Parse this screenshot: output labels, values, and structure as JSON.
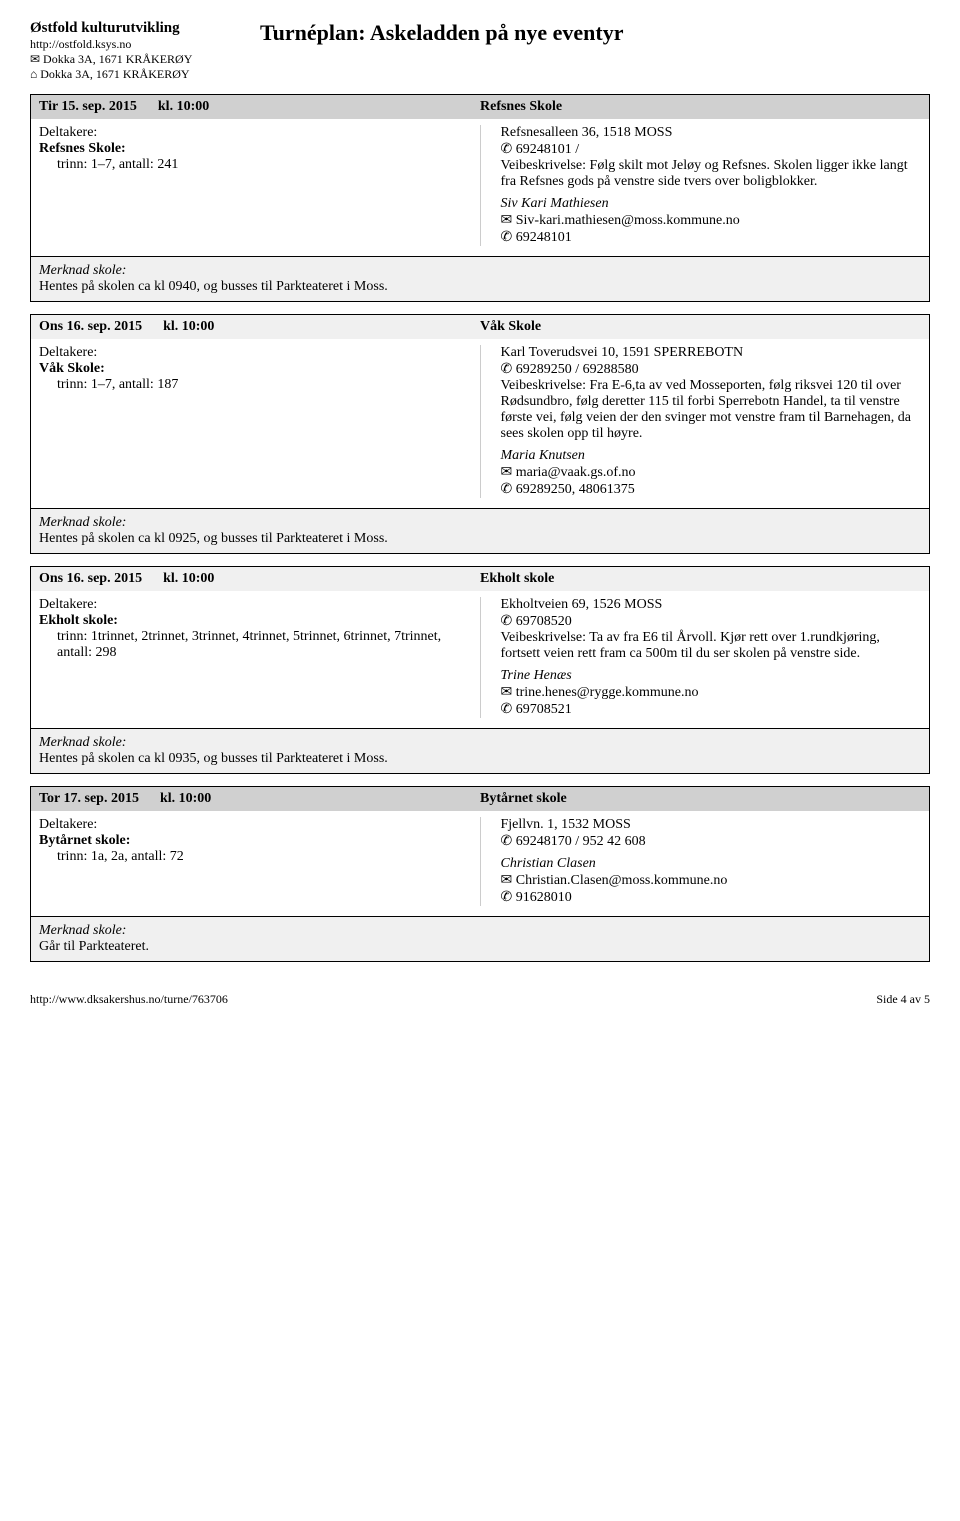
{
  "org": {
    "name": "Østfold kulturutvikling",
    "url": "http://ostfold.ksys.no",
    "addr1": "✉ Dokka 3A, 1671 KRÅKERØY",
    "addr2": "⌂ Dokka 3A, 1671 KRÅKERØY"
  },
  "title": "Turnéplan: Askeladden på nye eventyr",
  "events": [
    {
      "headerClass": "bg-dark",
      "date": "Tir 15. sep. 2015",
      "time": "kl. 10:00",
      "school": "Refsnes Skole",
      "participantsLabel": "Deltakere:",
      "schoolName": "Refsnes Skole:",
      "trinnLine": "trinn: 1–7, antall: 241",
      "address": "Refsnesalleen 36, 1518 MOSS",
      "phone": "✆ 69248101 /",
      "desc": "Veibeskrivelse: Følg skilt mot Jeløy og Refsnes. Skolen ligger ikke langt fra Refsnes gods på venstre side tvers over boligblokker.",
      "contactName": "Siv Kari Mathiesen",
      "contactEmail": "✉ Siv-kari.mathiesen@moss.kommune.no",
      "contactPhone": "✆ 69248101",
      "noteLabel": "Merknad skole:",
      "noteText": "Hentes på skolen ca kl 0940, og busses til Parkteateret i Moss."
    },
    {
      "headerClass": "bg-light",
      "date": "Ons 16. sep. 2015",
      "time": "kl. 10:00",
      "school": "Våk Skole",
      "participantsLabel": "Deltakere:",
      "schoolName": "Våk Skole:",
      "trinnLine": "trinn: 1–7, antall: 187",
      "address": "Karl Toverudsvei 10, 1591 SPERREBOTN",
      "phone": "✆ 69289250 / 69288580",
      "desc": "Veibeskrivelse: Fra E-6,ta av ved Mosseporten, følg riksvei 120 til over Rødsundbro, følg deretter 115 til forbi Sperrebotn Handel, ta til venstre første vei, følg veien der den svinger mot venstre fram til Barnehagen, da sees skolen opp til høyre.",
      "contactName": "Maria Knutsen",
      "contactEmail": "✉ maria@vaak.gs.of.no",
      "contactPhone": "✆ 69289250, 48061375",
      "noteLabel": "Merknad skole:",
      "noteText": "Hentes på skolen ca kl 0925, og busses til Parkteateret i Moss."
    },
    {
      "headerClass": "bg-light",
      "date": "Ons 16. sep. 2015",
      "time": "kl. 10:00",
      "school": "Ekholt skole",
      "participantsLabel": "Deltakere:",
      "schoolName": "Ekholt skole:",
      "trinnLine": "trinn: 1trinnet, 2trinnet, 3trinnet, 4trinnet, 5trinnet, 6trinnet, 7trinnet, antall: 298",
      "address": "Ekholtveien 69, 1526 MOSS",
      "phone": "✆ 69708520",
      "desc": "Veibeskrivelse: Ta av fra E6 til Årvoll. Kjør rett over 1.rundkjøring, fortsett veien rett fram ca 500m til du ser skolen på venstre side.",
      "contactName": "Trine Henæs",
      "contactEmail": "✉ trine.henes@rygge.kommune.no",
      "contactPhone": "✆ 69708521",
      "noteLabel": "Merknad skole:",
      "noteText": "Hentes på skolen ca kl 0935, og busses til Parkteateret i Moss."
    },
    {
      "headerClass": "bg-dark",
      "date": "Tor 17. sep. 2015",
      "time": "kl. 10:00",
      "school": "Bytårnet skole",
      "participantsLabel": "Deltakere:",
      "schoolName": "Bytårnet skole:",
      "trinnLine": "trinn: 1a, 2a, antall: 72",
      "address": "Fjellvn. 1, 1532 MOSS",
      "phone": "✆ 69248170 / 952 42 608",
      "desc": "",
      "contactName": "Christian Clasen",
      "contactEmail": "✉ Christian.Clasen@moss.kommune.no",
      "contactPhone": "✆ 91628010",
      "noteLabel": "Merknad skole:",
      "noteText": "Går til Parkteateret."
    }
  ],
  "footer": {
    "url": "http://www.dksakershus.no/turne/763706",
    "page": "Side 4 av 5"
  }
}
